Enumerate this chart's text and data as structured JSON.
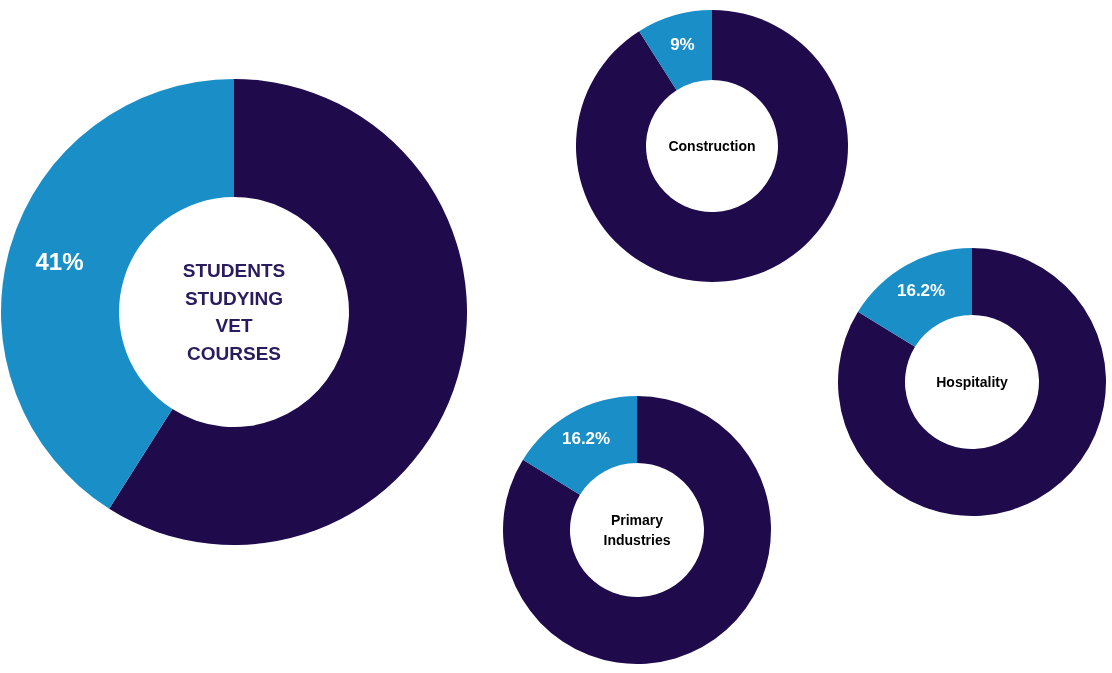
{
  "chart_data": [
    {
      "type": "donut",
      "title": "STUDENTS STUDYING VET COURSES",
      "categories": [
        null,
        null
      ],
      "values": [
        59,
        41
      ],
      "colors": [
        "#1f0a4c",
        "#1a8fc7"
      ],
      "value_labels": [
        null,
        "41%"
      ]
    },
    {
      "type": "donut",
      "title": "Construction",
      "categories": [
        null,
        null
      ],
      "values": [
        91,
        9
      ],
      "colors": [
        "#1f0a4c",
        "#1a8fc7"
      ],
      "value_labels": [
        null,
        "9%"
      ]
    },
    {
      "type": "donut",
      "title": "Hospitality",
      "categories": [
        null,
        null
      ],
      "values": [
        83.8,
        16.2
      ],
      "colors": [
        "#1f0a4c",
        "#1a8fc7"
      ],
      "value_labels": [
        null,
        "16.2%"
      ]
    },
    {
      "type": "donut",
      "title": "Primary Industries",
      "categories": [
        null,
        null
      ],
      "values": [
        83.8,
        16.2
      ],
      "colors": [
        "#1f0a4c",
        "#1a8fc7"
      ],
      "value_labels": [
        null,
        "16.2%"
      ]
    }
  ]
}
